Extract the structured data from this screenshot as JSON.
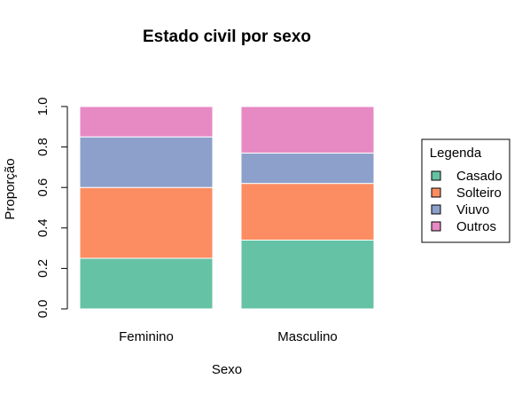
{
  "chart_data": {
    "type": "bar",
    "stacked": true,
    "title": "Estado civil por sexo",
    "xlabel": "Sexo",
    "ylabel": "Proporção",
    "ylim": [
      0,
      1
    ],
    "yticks": [
      "0.0",
      "0.2",
      "0.4",
      "0.6",
      "0.8",
      "1.0"
    ],
    "categories": [
      "Feminino",
      "Masculino"
    ],
    "series": [
      {
        "name": "Casado",
        "color": "#66c2a5",
        "values": [
          0.25,
          0.34
        ]
      },
      {
        "name": "Solteiro",
        "color": "#fc8d62",
        "values": [
          0.35,
          0.28
        ]
      },
      {
        "name": "Viuvo",
        "color": "#8da0cb",
        "values": [
          0.25,
          0.15
        ]
      },
      {
        "name": "Outros",
        "color": "#e78ac3",
        "values": [
          0.15,
          0.23
        ]
      }
    ],
    "legend": {
      "title": "Legenda",
      "position": "right"
    },
    "grid": false
  }
}
